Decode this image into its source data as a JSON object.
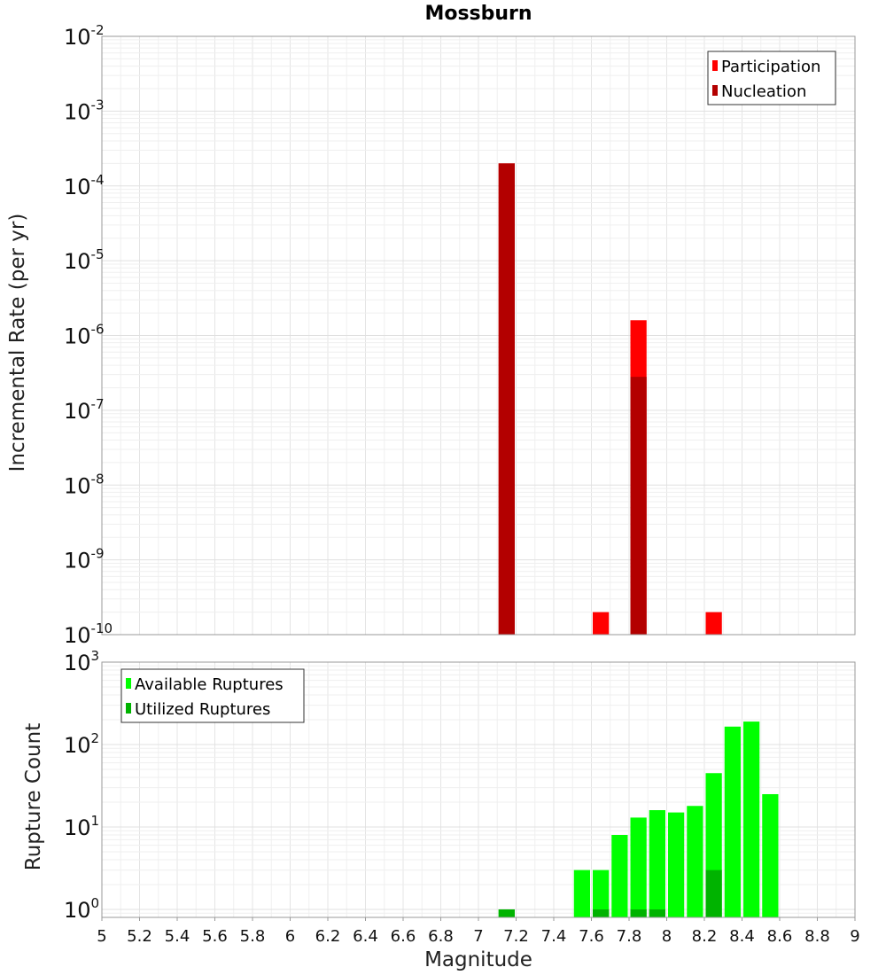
{
  "chart_data": [
    {
      "type": "bar",
      "title": "Mossburn",
      "ylabel": "Incremental Rate (per yr)",
      "xlabel": "",
      "xlim": [
        5,
        9
      ],
      "ylim": [
        1e-10,
        0.01
      ],
      "yscale": "log",
      "grid": true,
      "legend_position": "top-right",
      "y_tick_exponents": [
        "-2",
        "-3",
        "-4",
        "-5",
        "-6",
        "-7",
        "-8",
        "-9",
        "-10"
      ],
      "y_tick_base": "10",
      "bin_width": 0.1,
      "series": [
        {
          "name": "Participation",
          "color": "#ff0000",
          "points": [
            {
              "x": 7.15,
              "y": 0.0002
            },
            {
              "x": 7.65,
              "y": 2e-10
            },
            {
              "x": 7.85,
              "y": 1.6e-06
            },
            {
              "x": 8.25,
              "y": 2e-10
            }
          ]
        },
        {
          "name": "Nucleation",
          "color": "#b30000",
          "points": [
            {
              "x": 7.15,
              "y": 0.0002
            },
            {
              "x": 7.85,
              "y": 2.8e-07
            }
          ]
        }
      ]
    },
    {
      "type": "bar",
      "title": "",
      "ylabel": "Rupture Count",
      "xlabel": "Magnitude",
      "xlim": [
        5,
        9
      ],
      "ylim": [
        0.8,
        1000
      ],
      "yscale": "log",
      "grid": true,
      "legend_position": "top-left",
      "y_tick_exponents": [
        "3",
        "2",
        "1",
        "0"
      ],
      "y_tick_base": "10",
      "x_ticks": [
        "5",
        "5.2",
        "5.4",
        "5.6",
        "5.8",
        "6",
        "6.2",
        "6.4",
        "6.6",
        "6.8",
        "7",
        "7.2",
        "7.4",
        "7.6",
        "7.8",
        "8",
        "8.2",
        "8.4",
        "8.6",
        "8.8",
        "9"
      ],
      "bin_width": 0.1,
      "series": [
        {
          "name": "Available Ruptures",
          "color": "#00ff00",
          "points": [
            {
              "x": 7.15,
              "y": 1
            },
            {
              "x": 7.55,
              "y": 3
            },
            {
              "x": 7.65,
              "y": 3
            },
            {
              "x": 7.75,
              "y": 8
            },
            {
              "x": 7.85,
              "y": 13
            },
            {
              "x": 7.95,
              "y": 16
            },
            {
              "x": 8.05,
              "y": 15
            },
            {
              "x": 8.15,
              "y": 18
            },
            {
              "x": 8.25,
              "y": 45
            },
            {
              "x": 8.35,
              "y": 165
            },
            {
              "x": 8.45,
              "y": 190
            },
            {
              "x": 8.55,
              "y": 25
            }
          ]
        },
        {
          "name": "Utilized Ruptures",
          "color": "#00b300",
          "points": [
            {
              "x": 7.15,
              "y": 1
            },
            {
              "x": 7.65,
              "y": 1
            },
            {
              "x": 7.85,
              "y": 1
            },
            {
              "x": 7.95,
              "y": 1
            },
            {
              "x": 8.25,
              "y": 3
            }
          ]
        }
      ]
    }
  ]
}
